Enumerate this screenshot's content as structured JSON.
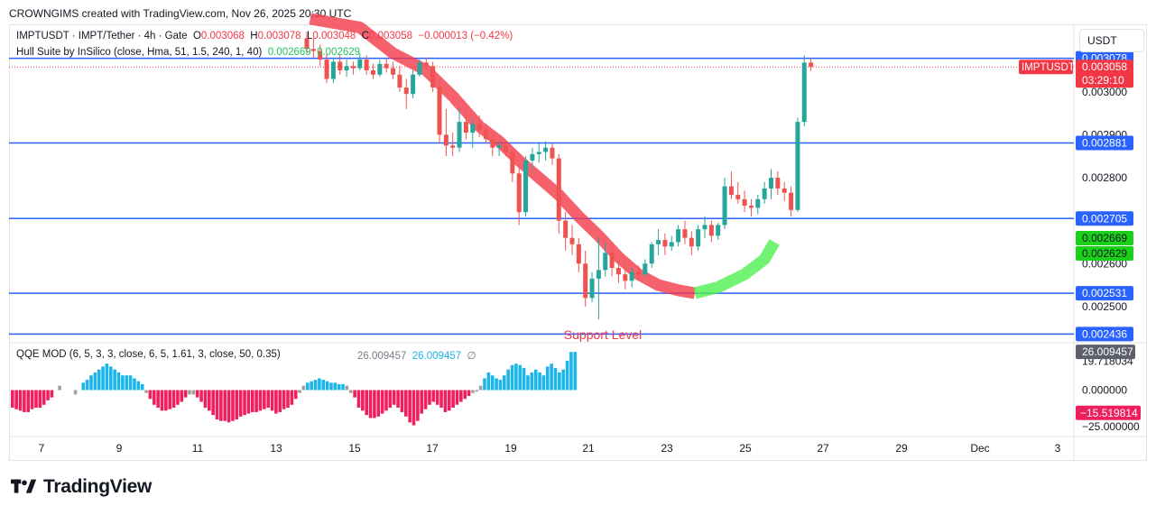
{
  "header": {
    "text": "CROWNGIMS created with TradingView.com, Nov 26, 2025 20:30 UTC"
  },
  "legend": {
    "symbol": "IMPTUSDT · IMPT/Tether · 4h · Gate",
    "o_label": "O",
    "o_value": "0.003068",
    "h_label": "H",
    "h_value": "0.003078",
    "l_label": "L",
    "l_value": "0.003048",
    "c_label": "C",
    "c_value": "0.003058",
    "change": "−0.000013 (−0.42%)",
    "hull_label": "Hull Suite by InSilico (close, Hma, 51, 1.5, 240, 1, 40)",
    "hull_v1": "0.002669",
    "hull_v2": "0.002629",
    "qqe_label": "QQE MOD (6, 5, 3, 3, close, 6, 5, 1.61, 3, close, 50, 0.35)",
    "qqe_v1": "26.009457",
    "qqe_v2": "26.009457",
    "qqe_v3": "∅"
  },
  "currency": "USDT",
  "colors": {
    "up": "#26a69a",
    "down": "#ef5350",
    "line": "#2962ff",
    "hull_red": "#f23645",
    "hull_green": "#4cf04c",
    "qqe_blue": "#1cb5ea",
    "qqe_red": "#ef1f5e",
    "qqe_gray": "#a0a0a0"
  },
  "badges": {
    "price_symbol": "IMPTUSDT",
    "price_value": "0.003058",
    "countdown": "03:29:10",
    "hull1": "0.002669",
    "hull2": "0.002629",
    "qqe_top": "26.009457",
    "qqe_neg": "−15.519814"
  },
  "support_label": "Support Level",
  "logo_text": "TradingView",
  "chart_data": {
    "type": "candlestick",
    "price_axis_ticks": [
      "0.003000",
      "0.002900",
      "0.002800",
      "0.002600",
      "0.002500"
    ],
    "price_range": [
      0.00242,
      0.003155
    ],
    "horizontal_levels": [
      {
        "label": "0.003078",
        "value": 0.003078
      },
      {
        "label": "0.002881",
        "value": 0.002881
      },
      {
        "label": "0.002705",
        "value": 0.002705
      },
      {
        "label": "0.002531",
        "value": 0.002531
      },
      {
        "label": "0.002436",
        "value": 0.002436
      }
    ],
    "current_price": 0.003058,
    "x_ticks": [
      "7",
      "9",
      "11",
      "13",
      "15",
      "17",
      "19",
      "21",
      "23",
      "25",
      "27",
      "29",
      "Dec",
      "3"
    ],
    "qqe_axis_ticks": [
      "19.718034",
      "0.000000",
      "−25.000000"
    ],
    "qqe_range": [
      -31,
      31
    ],
    "candles": [
      [
        0.003125,
        0.00314,
        0.00309,
        0.0031
      ],
      [
        0.0031,
        0.003125,
        0.00308,
        0.003095
      ],
      [
        0.003095,
        0.00311,
        0.00306,
        0.003075
      ],
      [
        0.003075,
        0.00309,
        0.00302,
        0.00303
      ],
      [
        0.00303,
        0.00308,
        0.00302,
        0.00307
      ],
      [
        0.00307,
        0.003085,
        0.00304,
        0.00305
      ],
      [
        0.00305,
        0.003075,
        0.003035,
        0.00306
      ],
      [
        0.00306,
        0.00307,
        0.00304,
        0.003055
      ],
      [
        0.003055,
        0.00309,
        0.00305,
        0.003075
      ],
      [
        0.003075,
        0.003085,
        0.00304,
        0.00305
      ],
      [
        0.00305,
        0.003065,
        0.00303,
        0.00304
      ],
      [
        0.00304,
        0.003075,
        0.003035,
        0.003065
      ],
      [
        0.003065,
        0.00308,
        0.003045,
        0.003055
      ],
      [
        0.003055,
        0.00307,
        0.00303,
        0.00304
      ],
      [
        0.00304,
        0.00306,
        0.003,
        0.00301
      ],
      [
        0.00301,
        0.00303,
        0.00296,
        0.002995
      ],
      [
        0.002995,
        0.00305,
        0.002985,
        0.00304
      ],
      [
        0.00304,
        0.003075,
        0.003035,
        0.003068
      ],
      [
        0.003068,
        0.00308,
        0.00305,
        0.00306
      ],
      [
        0.00306,
        0.00307,
        0.003,
        0.00301
      ],
      [
        0.00301,
        0.00303,
        0.00288,
        0.0029
      ],
      [
        0.0029,
        0.00296,
        0.00285,
        0.002875
      ],
      [
        0.002875,
        0.002905,
        0.00285,
        0.00287
      ],
      [
        0.00287,
        0.00296,
        0.00286,
        0.00293
      ],
      [
        0.00293,
        0.00296,
        0.00289,
        0.002905
      ],
      [
        0.002905,
        0.002935,
        0.00287,
        0.002925
      ],
      [
        0.002925,
        0.002945,
        0.002895,
        0.00291
      ],
      [
        0.00291,
        0.002925,
        0.00288,
        0.00289
      ],
      [
        0.00289,
        0.0029,
        0.00285,
        0.00287
      ],
      [
        0.00287,
        0.002885,
        0.00285,
        0.002875
      ],
      [
        0.002875,
        0.002885,
        0.00285,
        0.00286
      ],
      [
        0.00286,
        0.00287,
        0.00279,
        0.00281
      ],
      [
        0.00281,
        0.00283,
        0.00269,
        0.00272
      ],
      [
        0.00272,
        0.00285,
        0.00271,
        0.00284
      ],
      [
        0.00284,
        0.00287,
        0.00282,
        0.002855
      ],
      [
        0.002855,
        0.00288,
        0.002835,
        0.00286
      ],
      [
        0.00286,
        0.002885,
        0.00284,
        0.00287
      ],
      [
        0.00287,
        0.00288,
        0.00283,
        0.002845
      ],
      [
        0.002845,
        0.002855,
        0.00267,
        0.0027
      ],
      [
        0.0027,
        0.00272,
        0.00263,
        0.00266
      ],
      [
        0.00266,
        0.00269,
        0.00262,
        0.002645
      ],
      [
        0.002645,
        0.00266,
        0.00258,
        0.0026
      ],
      [
        0.0026,
        0.00263,
        0.0025,
        0.00252
      ],
      [
        0.00252,
        0.00258,
        0.00251,
        0.002565
      ],
      [
        0.002565,
        0.00266,
        0.00247,
        0.002585
      ],
      [
        0.002585,
        0.00265,
        0.00257,
        0.002625
      ],
      [
        0.002625,
        0.002635,
        0.00257,
        0.00259
      ],
      [
        0.00259,
        0.002605,
        0.002555,
        0.002575
      ],
      [
        0.002575,
        0.0026,
        0.00254,
        0.00256
      ],
      [
        0.00256,
        0.00259,
        0.002545,
        0.00258
      ],
      [
        0.00258,
        0.002595,
        0.00256,
        0.002575
      ],
      [
        0.002575,
        0.00261,
        0.00257,
        0.0026
      ],
      [
        0.0026,
        0.00265,
        0.00259,
        0.002645
      ],
      [
        0.002645,
        0.00268,
        0.00262,
        0.002655
      ],
      [
        0.002655,
        0.00267,
        0.00262,
        0.00264
      ],
      [
        0.00264,
        0.002665,
        0.00263,
        0.00265
      ],
      [
        0.00265,
        0.00269,
        0.00264,
        0.00268
      ],
      [
        0.00268,
        0.0027,
        0.002645,
        0.00266
      ],
      [
        0.00266,
        0.002675,
        0.00262,
        0.00264
      ],
      [
        0.00264,
        0.00269,
        0.00263,
        0.00268
      ],
      [
        0.00268,
        0.00271,
        0.00266,
        0.00269
      ],
      [
        0.00269,
        0.0027,
        0.00265,
        0.002665
      ],
      [
        0.002665,
        0.002695,
        0.002655,
        0.00269
      ],
      [
        0.00269,
        0.0028,
        0.00268,
        0.00278
      ],
      [
        0.00278,
        0.002815,
        0.00275,
        0.00276
      ],
      [
        0.00276,
        0.00279,
        0.00274,
        0.00275
      ],
      [
        0.00275,
        0.00277,
        0.00272,
        0.002735
      ],
      [
        0.002735,
        0.00275,
        0.00271,
        0.00273
      ],
      [
        0.00273,
        0.00276,
        0.002715,
        0.00275
      ],
      [
        0.00275,
        0.00279,
        0.00274,
        0.002775
      ],
      [
        0.002775,
        0.00282,
        0.00275,
        0.0028
      ],
      [
        0.0028,
        0.002815,
        0.00276,
        0.002775
      ],
      [
        0.002775,
        0.00279,
        0.002745,
        0.002765
      ],
      [
        0.002765,
        0.00278,
        0.00271,
        0.002725
      ],
      [
        0.002725,
        0.00294,
        0.00272,
        0.00293
      ],
      [
        0.00293,
        0.003085,
        0.00292,
        0.003068
      ],
      [
        0.003068,
        0.003078,
        0.003048,
        0.003058
      ]
    ],
    "hull_segments": [
      {
        "color": "red",
        "points": [
          [
            0.5,
            0.00317
          ],
          [
            8,
            0.00315
          ],
          [
            13,
            0.00309
          ],
          [
            18,
            0.00305
          ],
          [
            22,
            0.00299
          ],
          [
            26,
            0.00292
          ],
          [
            29,
            0.002885
          ],
          [
            32,
            0.00284
          ],
          [
            35,
            0.0028
          ],
          [
            38,
            0.00276
          ],
          [
            41,
            0.00271
          ],
          [
            44,
            0.002665
          ],
          [
            47,
            0.002615
          ],
          [
            50,
            0.002575
          ],
          [
            53,
            0.00255
          ],
          [
            56,
            0.002538
          ],
          [
            58.5,
            0.002531
          ]
        ]
      },
      {
        "color": "green",
        "points": [
          [
            58.5,
            0.002531
          ],
          [
            62,
            0.002545
          ],
          [
            66,
            0.002575
          ],
          [
            69,
            0.00261
          ],
          [
            70.5,
            0.00265
          ]
        ]
      }
    ],
    "qqe_bars": [
      -12,
      -13,
      -14,
      -15,
      -15,
      -13,
      -12,
      -12,
      -10,
      -7,
      -5,
      0,
      3,
      0,
      0,
      0,
      -3,
      0,
      5,
      7,
      10,
      12,
      14,
      16,
      18,
      16,
      14,
      12,
      10,
      10,
      10,
      8,
      6,
      4,
      -2,
      -6,
      -10,
      -12,
      -14,
      -14,
      -13,
      -12,
      -10,
      -8,
      -5,
      -3,
      -3,
      -5,
      -8,
      -12,
      -14,
      -17,
      -20,
      -21,
      -21,
      -22,
      -21,
      -20,
      -18,
      -17,
      -16,
      -15,
      -15,
      -14,
      -13,
      -12,
      -14,
      -16,
      -15,
      -13,
      -12,
      -10,
      -6,
      -2,
      3,
      5,
      6,
      7,
      8,
      7,
      6,
      5,
      5,
      4,
      4,
      3
    ],
    "qqe_tail": [
      -2,
      -5,
      -12,
      -14,
      -17,
      -19,
      -19,
      -18,
      -16,
      -14,
      -12,
      -10,
      -12,
      -15,
      -18,
      -22,
      -24,
      -21,
      -16,
      -13,
      -10,
      -8,
      -10,
      -12,
      -15,
      -14,
      -12,
      -10,
      -8,
      -6,
      -4,
      -2,
      -1,
      3,
      8,
      12,
      10,
      8,
      7,
      10,
      14,
      17,
      18,
      17,
      15,
      10,
      12,
      14,
      12,
      10,
      16,
      18,
      15,
      12,
      14,
      20,
      26,
      26
    ]
  }
}
